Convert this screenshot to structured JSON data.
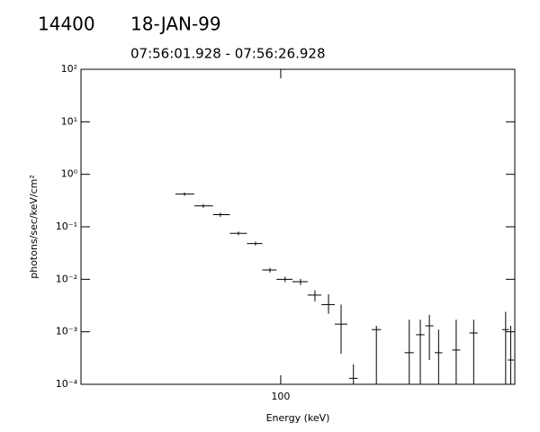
{
  "chart_data": {
    "type": "errorbar-scatter",
    "title": "14400",
    "date": "18-JAN-99",
    "subtitle": "07:56:01.928 - 07:56:26.928",
    "xlabel": "Energy (keV)",
    "ylabel": "photons/sec/keV/cm²",
    "xscale": "log",
    "yscale": "log",
    "xlim": [
      30,
      410
    ],
    "ylim": [
      0.0001,
      100
    ],
    "xticks": [
      100
    ],
    "yticks": [
      {
        "value": 100,
        "label": "10²"
      },
      {
        "value": 10,
        "label": "10¹"
      },
      {
        "value": 1,
        "label": "10⁰"
      },
      {
        "value": 0.1,
        "label": "10⁻¹"
      },
      {
        "value": 0.01,
        "label": "10⁻²"
      },
      {
        "value": 0.001,
        "label": "10⁻³"
      },
      {
        "value": 0.0001,
        "label": "10⁻⁴"
      }
    ],
    "color": "#000000",
    "x": [
      56,
      62.7,
      69.5,
      77.5,
      85.9,
      93.7,
      102.7,
      112.7,
      122.9,
      133.4,
      143.9,
      155,
      178,
      217,
      232,
      245,
      259,
      288,
      320,
      388,
      400
    ],
    "x_low": [
      53,
      59.4,
      66.5,
      73.6,
      81.6,
      89.5,
      97.5,
      107.3,
      117.6,
      127.8,
      138.5,
      151,
      173,
      211,
      226,
      239,
      253,
      281,
      312,
      380,
      393
    ],
    "x_high": [
      59.4,
      66.5,
      73.6,
      81.6,
      89.5,
      97.5,
      107.3,
      117.6,
      127.8,
      138.5,
      149.5,
      159,
      183,
      223,
      238,
      251,
      265,
      295,
      328,
      396,
      408
    ],
    "values": [
      0.42,
      0.25,
      0.17,
      0.075,
      0.048,
      0.015,
      0.01,
      0.009,
      0.005,
      0.0033,
      0.0014,
      0.00013,
      0.0011,
      0.0004,
      0.00088,
      0.0013,
      0.0004,
      0.00045,
      0.00095,
      0.0011,
      0.00029
    ],
    "y_low": [
      0.39,
      0.23,
      0.155,
      0.069,
      0.044,
      0.0135,
      0.0088,
      0.0078,
      0.0038,
      0.0022,
      0.00038,
      5e-05,
      5e-05,
      5e-05,
      5e-05,
      0.00029,
      5e-05,
      5e-05,
      5e-05,
      5e-05,
      5e-05
    ],
    "y_high": [
      0.45,
      0.27,
      0.185,
      0.081,
      0.052,
      0.0165,
      0.0112,
      0.0102,
      0.0062,
      0.0052,
      0.0033,
      0.00024,
      0.0013,
      0.0017,
      0.0017,
      0.0021,
      0.0011,
      0.0017,
      0.0017,
      0.0024,
      0.0013
    ]
  }
}
